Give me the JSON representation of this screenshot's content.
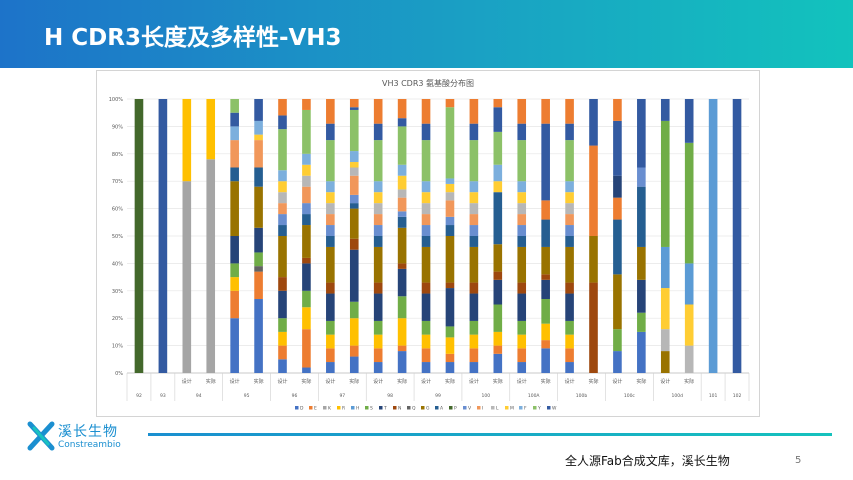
{
  "slide": {
    "title": "H CDR3长度及多样性-VH3",
    "footer_text": "全人源Fab合成文库，溪长生物",
    "page_number": "5",
    "logo_cn": "溪长生物",
    "logo_en": "Constreambio"
  },
  "colors": {
    "header_start": "#1d73c9",
    "header_end": "#12c3bd"
  },
  "chart_data": {
    "type": "bar",
    "stacked": true,
    "normalized": true,
    "title": "VH3 CDR3 氨基酸分布图",
    "ylim": [
      0,
      100
    ],
    "y_ticks": [
      "0%",
      "10%",
      "20%",
      "30%",
      "40%",
      "50%",
      "60%",
      "70%",
      "80%",
      "90%",
      "100%"
    ],
    "grid": true,
    "legend_position": "bottom",
    "amino_acids": [
      "D",
      "E",
      "K",
      "R",
      "H",
      "S",
      "T",
      "N",
      "Q",
      "G",
      "A",
      "P",
      "V",
      "I",
      "L",
      "M",
      "F",
      "Y",
      "W"
    ],
    "aa_colors": [
      "#4472c4",
      "#ed7d31",
      "#a5a5a5",
      "#ffc000",
      "#5b9bd5",
      "#70ad47",
      "#264478",
      "#9e480e",
      "#636363",
      "#997300",
      "#255e91",
      "#43682b",
      "#698ed0",
      "#f1975a",
      "#b7b7b7",
      "#ffcd33",
      "#7cafdd",
      "#8cc168",
      "#335aa1"
    ],
    "legend_labels": [
      "D",
      "E",
      "K",
      "R",
      "H",
      "S",
      "T",
      "N",
      "Q",
      "G",
      "A",
      "P",
      "V",
      "I",
      "L",
      "M",
      "F",
      "Y",
      "W"
    ],
    "bars": [
      {
        "sub": "",
        "seg": [
          [
            "P",
            100
          ]
        ]
      },
      {
        "sub": "",
        "seg": [
          [
            "W",
            100
          ]
        ]
      },
      {
        "sub": "设计",
        "seg": [
          [
            "K",
            70
          ],
          [
            "R",
            30
          ]
        ]
      },
      {
        "sub": "实际",
        "seg": [
          [
            "K",
            78
          ],
          [
            "R",
            22
          ]
        ]
      },
      {
        "sub": "设计",
        "seg": [
          [
            "D",
            20
          ],
          [
            "E",
            10
          ],
          [
            "R",
            5
          ],
          [
            "S",
            5
          ],
          [
            "T",
            10
          ],
          [
            "G",
            20
          ],
          [
            "A",
            5
          ],
          [
            "I",
            10
          ],
          [
            "F",
            5
          ],
          [
            "W",
            5
          ],
          [
            "Y",
            5
          ]
        ]
      },
      {
        "sub": "实际",
        "seg": [
          [
            "D",
            27
          ],
          [
            "E",
            10
          ],
          [
            "Q",
            2
          ],
          [
            "S",
            5
          ],
          [
            "T",
            9
          ],
          [
            "G",
            15
          ],
          [
            "A",
            7
          ],
          [
            "I",
            10
          ],
          [
            "M",
            2
          ],
          [
            "F",
            5
          ],
          [
            "W",
            8
          ]
        ]
      },
      {
        "sub": "设计",
        "seg": [
          [
            "D",
            5
          ],
          [
            "E",
            5
          ],
          [
            "R",
            5
          ],
          [
            "S",
            5
          ],
          [
            "T",
            10
          ],
          [
            "N",
            5
          ],
          [
            "G",
            15
          ],
          [
            "A",
            4
          ],
          [
            "V",
            4
          ],
          [
            "I",
            4
          ],
          [
            "L",
            4
          ],
          [
            "M",
            4
          ],
          [
            "F",
            4
          ],
          [
            "Y",
            15
          ],
          [
            "W",
            5
          ],
          [
            "E",
            6
          ]
        ]
      },
      {
        "sub": "实际",
        "seg": [
          [
            "D",
            2
          ],
          [
            "E",
            14
          ],
          [
            "R",
            8
          ],
          [
            "S",
            6
          ],
          [
            "T",
            10
          ],
          [
            "N",
            2
          ],
          [
            "G",
            12
          ],
          [
            "A",
            4
          ],
          [
            "V",
            4
          ],
          [
            "I",
            6
          ],
          [
            "L",
            4
          ],
          [
            "M",
            4
          ],
          [
            "F",
            4
          ],
          [
            "Y",
            16
          ],
          [
            "E",
            4
          ]
        ]
      },
      {
        "sub": "设计",
        "seg": [
          [
            "D",
            4
          ],
          [
            "E",
            5
          ],
          [
            "R",
            5
          ],
          [
            "S",
            5
          ],
          [
            "T",
            10
          ],
          [
            "N",
            4
          ],
          [
            "G",
            13
          ],
          [
            "A",
            4
          ],
          [
            "V",
            4
          ],
          [
            "I",
            4
          ],
          [
            "L",
            4
          ],
          [
            "M",
            4
          ],
          [
            "F",
            4
          ],
          [
            "Y",
            15
          ],
          [
            "W",
            6
          ],
          [
            "E",
            9
          ]
        ]
      },
      {
        "sub": "实际",
        "seg": [
          [
            "D",
            6
          ],
          [
            "E",
            4
          ],
          [
            "R",
            10
          ],
          [
            "S",
            6
          ],
          [
            "T",
            19
          ],
          [
            "N",
            4
          ],
          [
            "G",
            11
          ],
          [
            "A",
            2
          ],
          [
            "V",
            3
          ],
          [
            "I",
            7
          ],
          [
            "L",
            3
          ],
          [
            "M",
            2
          ],
          [
            "F",
            4
          ],
          [
            "Y",
            15
          ],
          [
            "W",
            1
          ],
          [
            "E",
            3
          ]
        ]
      },
      {
        "sub": "设计",
        "seg": [
          [
            "D",
            4
          ],
          [
            "E",
            5
          ],
          [
            "R",
            5
          ],
          [
            "S",
            5
          ],
          [
            "T",
            10
          ],
          [
            "N",
            4
          ],
          [
            "G",
            13
          ],
          [
            "A",
            4
          ],
          [
            "V",
            4
          ],
          [
            "I",
            4
          ],
          [
            "L",
            4
          ],
          [
            "M",
            4
          ],
          [
            "F",
            4
          ],
          [
            "Y",
            15
          ],
          [
            "W",
            6
          ],
          [
            "E",
            9
          ]
        ]
      },
      {
        "sub": "实际",
        "seg": [
          [
            "D",
            8
          ],
          [
            "E",
            2
          ],
          [
            "R",
            10
          ],
          [
            "S",
            8
          ],
          [
            "T",
            10
          ],
          [
            "N",
            2
          ],
          [
            "G",
            13
          ],
          [
            "A",
            4
          ],
          [
            "V",
            2
          ],
          [
            "I",
            5
          ],
          [
            "L",
            3
          ],
          [
            "M",
            5
          ],
          [
            "F",
            4
          ],
          [
            "Y",
            14
          ],
          [
            "W",
            3
          ],
          [
            "E",
            7
          ]
        ]
      },
      {
        "sub": "设计",
        "seg": [
          [
            "D",
            4
          ],
          [
            "E",
            5
          ],
          [
            "R",
            5
          ],
          [
            "S",
            5
          ],
          [
            "T",
            10
          ],
          [
            "N",
            4
          ],
          [
            "G",
            13
          ],
          [
            "A",
            4
          ],
          [
            "V",
            4
          ],
          [
            "I",
            4
          ],
          [
            "L",
            4
          ],
          [
            "M",
            4
          ],
          [
            "F",
            4
          ],
          [
            "Y",
            15
          ],
          [
            "W",
            6
          ],
          [
            "E",
            9
          ]
        ]
      },
      {
        "sub": "实际",
        "seg": [
          [
            "D",
            4
          ],
          [
            "E",
            3
          ],
          [
            "R",
            6
          ],
          [
            "S",
            4
          ],
          [
            "T",
            14
          ],
          [
            "N",
            2
          ],
          [
            "G",
            17
          ],
          [
            "A",
            4
          ],
          [
            "V",
            3
          ],
          [
            "I",
            6
          ],
          [
            "L",
            3
          ],
          [
            "M",
            3
          ],
          [
            "F",
            2
          ],
          [
            "Y",
            26
          ],
          [
            "E",
            3
          ]
        ]
      },
      {
        "sub": "设计",
        "seg": [
          [
            "D",
            4
          ],
          [
            "E",
            5
          ],
          [
            "R",
            5
          ],
          [
            "S",
            5
          ],
          [
            "T",
            10
          ],
          [
            "N",
            4
          ],
          [
            "G",
            13
          ],
          [
            "A",
            4
          ],
          [
            "V",
            4
          ],
          [
            "I",
            4
          ],
          [
            "L",
            4
          ],
          [
            "M",
            4
          ],
          [
            "F",
            4
          ],
          [
            "Y",
            15
          ],
          [
            "W",
            6
          ],
          [
            "E",
            9
          ]
        ]
      },
      {
        "sub": "实际",
        "seg": [
          [
            "D",
            7
          ],
          [
            "E",
            3
          ],
          [
            "R",
            5
          ],
          [
            "S",
            10
          ],
          [
            "T",
            9
          ],
          [
            "N",
            3
          ],
          [
            "G",
            10
          ],
          [
            "A",
            19
          ],
          [
            "M",
            4
          ],
          [
            "F",
            6
          ],
          [
            "Y",
            12
          ],
          [
            "W",
            9
          ],
          [
            "E",
            3
          ]
        ]
      },
      {
        "sub": "设计",
        "seg": [
          [
            "D",
            4
          ],
          [
            "E",
            5
          ],
          [
            "R",
            5
          ],
          [
            "S",
            5
          ],
          [
            "T",
            10
          ],
          [
            "N",
            4
          ],
          [
            "G",
            13
          ],
          [
            "A",
            4
          ],
          [
            "V",
            4
          ],
          [
            "I",
            4
          ],
          [
            "L",
            4
          ],
          [
            "M",
            4
          ],
          [
            "F",
            4
          ],
          [
            "Y",
            15
          ],
          [
            "W",
            6
          ],
          [
            "E",
            9
          ]
        ]
      },
      {
        "sub": "实际",
        "seg": [
          [
            "D",
            9
          ],
          [
            "E",
            3
          ],
          [
            "R",
            6
          ],
          [
            "S",
            9
          ],
          [
            "T",
            7
          ],
          [
            "N",
            2
          ],
          [
            "G",
            10
          ],
          [
            "A",
            10
          ],
          [
            "E",
            7
          ],
          [
            "W",
            28
          ],
          [
            "E",
            9
          ]
        ]
      },
      {
        "sub": "设计",
        "seg": [
          [
            "D",
            4
          ],
          [
            "E",
            5
          ],
          [
            "R",
            5
          ],
          [
            "S",
            5
          ],
          [
            "T",
            10
          ],
          [
            "N",
            4
          ],
          [
            "G",
            13
          ],
          [
            "A",
            4
          ],
          [
            "V",
            4
          ],
          [
            "I",
            4
          ],
          [
            "L",
            4
          ],
          [
            "M",
            4
          ],
          [
            "F",
            4
          ],
          [
            "Y",
            15
          ],
          [
            "W",
            6
          ],
          [
            "E",
            9
          ]
        ]
      },
      {
        "sub": "实际",
        "seg": [
          [
            "N",
            33
          ],
          [
            "G",
            17
          ],
          [
            "E",
            33
          ],
          [
            "W",
            17
          ]
        ]
      },
      {
        "sub": "设计",
        "seg": [
          [
            "D",
            8
          ],
          [
            "S",
            8
          ],
          [
            "G",
            20
          ],
          [
            "A",
            20
          ],
          [
            "E",
            8
          ],
          [
            "T",
            8
          ],
          [
            "W",
            20
          ],
          [
            "E",
            8
          ]
        ]
      },
      {
        "sub": "实际",
        "seg": [
          [
            "D",
            15
          ],
          [
            "S",
            7
          ],
          [
            "T",
            12
          ],
          [
            "G",
            12
          ],
          [
            "A",
            22
          ],
          [
            "V",
            7
          ],
          [
            "W",
            25
          ]
        ]
      },
      {
        "sub": "设计",
        "seg": [
          [
            "G",
            8
          ],
          [
            "L",
            8
          ],
          [
            "M",
            15
          ],
          [
            "H",
            15
          ],
          [
            "S",
            46
          ],
          [
            "W",
            8
          ]
        ]
      },
      {
        "sub": "实际",
        "seg": [
          [
            "L",
            10
          ],
          [
            "M",
            15
          ],
          [
            "H",
            15
          ],
          [
            "S",
            44
          ],
          [
            "W",
            16
          ]
        ]
      },
      {
        "sub": "",
        "seg": [
          [
            "H",
            100
          ]
        ]
      },
      {
        "sub": "",
        "seg": [
          [
            "W",
            100
          ]
        ]
      }
    ],
    "groups": [
      {
        "label": "92",
        "from": 0,
        "to": 0
      },
      {
        "label": "93",
        "from": 1,
        "to": 1
      },
      {
        "label": "94",
        "from": 2,
        "to": 3
      },
      {
        "label": "95",
        "from": 4,
        "to": 5
      },
      {
        "label": "96",
        "from": 6,
        "to": 7
      },
      {
        "label": "97",
        "from": 8,
        "to": 9
      },
      {
        "label": "98",
        "from": 10,
        "to": 11
      },
      {
        "label": "99",
        "from": 12,
        "to": 13
      },
      {
        "label": "100",
        "from": 14,
        "to": 15
      },
      {
        "label": "100A",
        "from": 16,
        "to": 17
      },
      {
        "label": "100b",
        "from": 18,
        "to": 19
      },
      {
        "label": "100c",
        "from": 20,
        "to": 21
      },
      {
        "label": "100d",
        "from": 22,
        "to": 23
      },
      {
        "label": "101",
        "from": 24,
        "to": 24
      },
      {
        "label": "102",
        "from": 25,
        "to": 25
      }
    ]
  }
}
